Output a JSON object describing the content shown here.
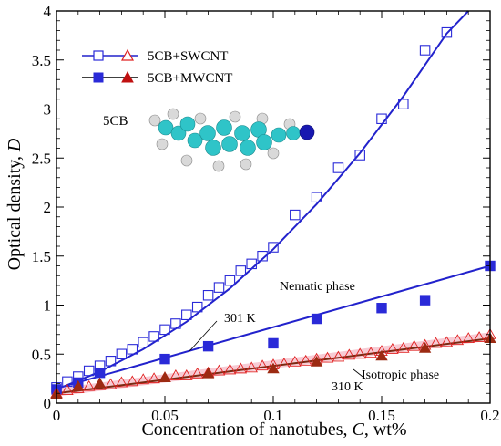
{
  "chart_data": {
    "type": "scatter",
    "xlabel": "Concentration of nanotubes, ",
    "xlabel_var": "C",
    "xlabel_unit": ", wt%",
    "ylabel": "Optical density, ",
    "ylabel_var": "D",
    "xlim": [
      0,
      0.2
    ],
    "ylim": [
      0,
      4
    ],
    "x_ticks": [
      "0",
      "0.05",
      "0.1",
      "0.15",
      "0.2"
    ],
    "y_ticks": [
      "0",
      "0.5",
      "1",
      "1.5",
      "2",
      "2.5",
      "3",
      "3.5",
      "4"
    ],
    "grid": false,
    "legend_position": "top-left",
    "legend": [
      {
        "label": "5CB+SWCNT",
        "marker": "hollow",
        "color_square": "#2a2ad8",
        "color_triangle": "#e02020"
      },
      {
        "label": "5CB+MWCNT",
        "marker": "filled",
        "color_square": "#2a2ad8",
        "color_triangle": "#c01010"
      }
    ],
    "annotations": {
      "molecule_label": "5CB",
      "nematic": "Nematic phase",
      "temp_301": "301 K",
      "temp_310": "310 K",
      "isotropic": "Isotropic phase"
    },
    "series": [
      {
        "name": "5CB+SWCNT",
        "phase": "301 K",
        "marker": "hollow-square",
        "color": "#2a2ad8",
        "x": [
          0,
          0.005,
          0.01,
          0.015,
          0.02,
          0.025,
          0.03,
          0.035,
          0.04,
          0.045,
          0.05,
          0.055,
          0.06,
          0.065,
          0.07,
          0.075,
          0.08,
          0.085,
          0.09,
          0.095,
          0.1,
          0.11,
          0.12,
          0.13,
          0.14,
          0.15,
          0.16,
          0.17,
          0.18
        ],
        "y": [
          0.16,
          0.22,
          0.27,
          0.33,
          0.38,
          0.43,
          0.5,
          0.55,
          0.62,
          0.68,
          0.75,
          0.81,
          0.9,
          0.98,
          1.1,
          1.18,
          1.25,
          1.35,
          1.42,
          1.5,
          1.59,
          1.92,
          2.1,
          2.4,
          2.53,
          2.9,
          3.05,
          3.6,
          3.78
        ]
      },
      {
        "name": "5CB+MWCNT",
        "phase": "301 K",
        "marker": "filled-square",
        "color": "#2a2ad8",
        "x": [
          0,
          0.01,
          0.02,
          0.05,
          0.07,
          0.1,
          0.12,
          0.15,
          0.17,
          0.2
        ],
        "y": [
          0.14,
          0.21,
          0.31,
          0.45,
          0.58,
          0.61,
          0.86,
          0.97,
          1.05,
          1.4
        ]
      },
      {
        "name": "5CB+SWCNT",
        "phase": "310 K",
        "marker": "hollow-triangle",
        "color": "#e02020",
        "x": [
          0,
          0.005,
          0.01,
          0.015,
          0.02,
          0.025,
          0.03,
          0.035,
          0.04,
          0.045,
          0.05,
          0.055,
          0.06,
          0.065,
          0.07,
          0.075,
          0.08,
          0.085,
          0.09,
          0.095,
          0.1,
          0.105,
          0.11,
          0.115,
          0.12,
          0.125,
          0.13,
          0.135,
          0.14,
          0.145,
          0.15,
          0.155,
          0.16,
          0.165,
          0.17,
          0.175,
          0.18,
          0.185,
          0.19,
          0.195,
          0.2
        ],
        "y": [
          0.1,
          0.13,
          0.15,
          0.17,
          0.18,
          0.19,
          0.21,
          0.22,
          0.24,
          0.25,
          0.26,
          0.28,
          0.28,
          0.3,
          0.31,
          0.33,
          0.34,
          0.35,
          0.36,
          0.38,
          0.39,
          0.4,
          0.42,
          0.43,
          0.45,
          0.46,
          0.47,
          0.49,
          0.5,
          0.51,
          0.53,
          0.55,
          0.56,
          0.58,
          0.59,
          0.61,
          0.62,
          0.64,
          0.66,
          0.67,
          0.7
        ]
      },
      {
        "name": "5CB+MWCNT",
        "phase": "310 K",
        "marker": "filled-triangle",
        "color": "#9c2a12",
        "x": [
          0,
          0.01,
          0.02,
          0.05,
          0.07,
          0.1,
          0.12,
          0.15,
          0.17,
          0.2
        ],
        "y": [
          0.09,
          0.17,
          0.2,
          0.26,
          0.3,
          0.35,
          0.42,
          0.48,
          0.56,
          0.66
        ]
      }
    ],
    "fits": [
      {
        "name": "SWCNT 301 K fit",
        "color": "#2222cc",
        "x": [
          0,
          0.02,
          0.04,
          0.06,
          0.08,
          0.1,
          0.12,
          0.14,
          0.16,
          0.18,
          0.19
        ],
        "y": [
          0.14,
          0.32,
          0.55,
          0.83,
          1.17,
          1.57,
          2.03,
          2.55,
          3.13,
          3.77,
          4.0
        ]
      },
      {
        "name": "MWCNT 301 K fit",
        "color": "#2222cc",
        "x": [
          0,
          0.2
        ],
        "y": [
          0.15,
          1.4
        ]
      },
      {
        "name": "SWCNT 310 K fit",
        "color": "#f0a0b0",
        "x": [
          0,
          0.2
        ],
        "y": [
          0.11,
          0.68
        ]
      },
      {
        "name": "MWCNT 310 K fit",
        "color": "#7a2a12",
        "x": [
          0,
          0.2
        ],
        "y": [
          0.1,
          0.66
        ]
      }
    ]
  }
}
